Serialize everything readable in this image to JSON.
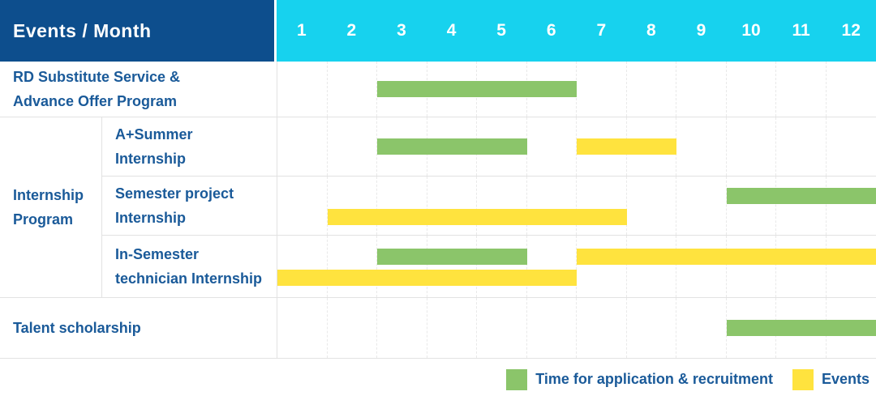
{
  "header": {
    "title": "Events / Month",
    "months": [
      "1",
      "2",
      "3",
      "4",
      "5",
      "6",
      "7",
      "8",
      "9",
      "10",
      "11",
      "12"
    ]
  },
  "colors": {
    "navy": "#0d4e8d",
    "cyan": "#17d2ee",
    "green": "#8bc56a",
    "yellow": "#ffe33e",
    "blue_text": "#1a5a99",
    "grid": "#e2e2e2"
  },
  "chart_data": {
    "type": "gantt",
    "title": "Events / Month",
    "x_unit": "month",
    "x_range": [
      1,
      12
    ],
    "grid": true,
    "rows": [
      {
        "event": "RD Substitute Service & Advance Offer Program",
        "label": "RD Substitute Service &\nAdvance Offer Program",
        "group": null,
        "bars": [
          {
            "category": "application",
            "start_month": 3,
            "end_month": 6,
            "track": "center"
          }
        ]
      },
      {
        "event": "A+Summer Internship",
        "label": "A+Summer\nInternship",
        "group": "Internship Program",
        "bars": [
          {
            "category": "application",
            "start_month": 3,
            "end_month": 5,
            "track": "center"
          },
          {
            "category": "event",
            "start_month": 7,
            "end_month": 8,
            "track": "center"
          }
        ]
      },
      {
        "event": "Semester project Internship",
        "label": "Semester project\nInternship",
        "group": "Internship Program",
        "bars": [
          {
            "category": "application",
            "start_month": 10,
            "end_month": 12,
            "track": "upper"
          },
          {
            "category": "event",
            "start_month": 2,
            "end_month": 7,
            "track": "lower"
          }
        ]
      },
      {
        "event": "In-Semester technician Internship",
        "label": "In-Semester\ntechnician Internship",
        "group": "Internship Program",
        "bars": [
          {
            "category": "application",
            "start_month": 3,
            "end_month": 5,
            "track": "upper"
          },
          {
            "category": "event",
            "start_month": 7,
            "end_month": 12,
            "track": "upper"
          },
          {
            "category": "event",
            "start_month": 1,
            "end_month": 6,
            "track": "lower"
          }
        ]
      },
      {
        "event": "Talent scholarship",
        "label": "Talent scholarship",
        "group": null,
        "bars": [
          {
            "category": "application",
            "start_month": 10,
            "end_month": 12,
            "track": "center"
          }
        ]
      }
    ],
    "group_label": "Internship\nProgram",
    "legend": [
      {
        "category": "application",
        "label": "Time for application & recruitment",
        "color": "#8bc56a"
      },
      {
        "category": "event",
        "label": "Events",
        "color": "#ffe33e"
      }
    ],
    "legend_position": "bottom-right"
  }
}
